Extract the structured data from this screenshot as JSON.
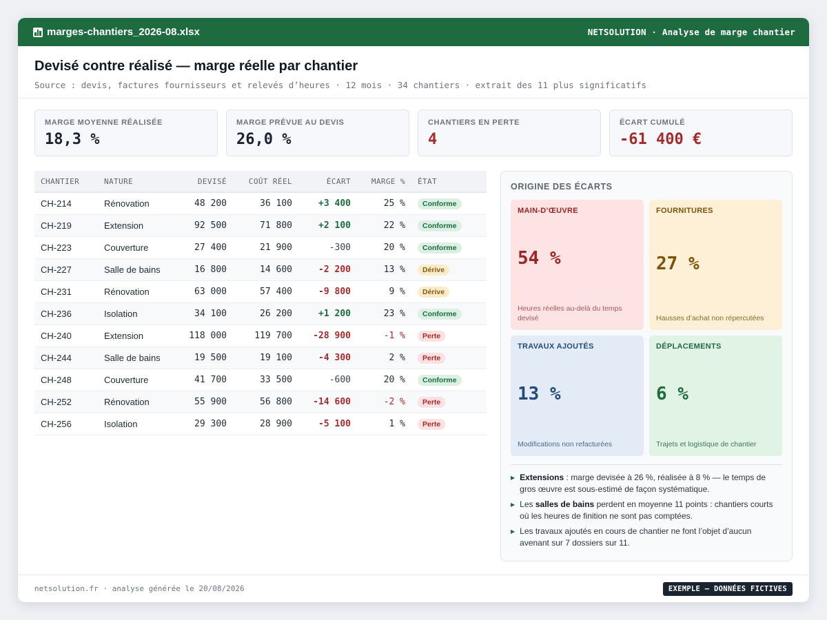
{
  "titlebar": {
    "filename": "marges-chantiers_2026-08.xlsx",
    "brand": "NETSOLUTION · Analyse de marge chantier"
  },
  "header": {
    "title": "Devisé contre réalisé — marge réelle par chantier",
    "subtitle": "Source : devis, factures fournisseurs et relevés d’heures · 12 mois · 34 chantiers · extrait des 11 plus significatifs"
  },
  "kpis": [
    {
      "label": "MARGE MOYENNE RÉALISÉE",
      "value": "18,3 %"
    },
    {
      "label": "MARGE PRÉVUE AU DEVIS",
      "value": "26,0 %"
    },
    {
      "label": "CHANTIERS EN PERTE",
      "value": "4"
    },
    {
      "label": "ÉCART CUMULÉ",
      "value": "-61 400 €"
    }
  ],
  "table": {
    "headers": [
      "CHANTIER",
      "NATURE",
      "DEVISÉ",
      "COÛT RÉEL",
      "ÉCART",
      "MARGE %",
      "ÉTAT"
    ],
    "rows": [
      [
        "CH-214",
        "Rénovation",
        "48 200",
        "36 100",
        "+3 400",
        "25 %",
        "Conforme"
      ],
      [
        "CH-219",
        "Extension",
        "92 500",
        "71 800",
        "+2 100",
        "22 %",
        "Conforme"
      ],
      [
        "CH-223",
        "Couverture",
        "27 400",
        "21 900",
        "-300",
        "20 %",
        "Conforme"
      ],
      [
        "CH-227",
        "Salle de bains",
        "16 800",
        "14 600",
        "-2 200",
        "13 %",
        "Dérive"
      ],
      [
        "CH-231",
        "Rénovation",
        "63 000",
        "57 400",
        "-9 800",
        "9 %",
        "Dérive"
      ],
      [
        "CH-236",
        "Isolation",
        "34 100",
        "26 200",
        "+1 200",
        "23 %",
        "Conforme"
      ],
      [
        "CH-240",
        "Extension",
        "118 000",
        "119 700",
        "-28 900",
        "-1 %",
        "Perte"
      ],
      [
        "CH-244",
        "Salle de bains",
        "19 500",
        "19 100",
        "-4 300",
        "2 %",
        "Perte"
      ],
      [
        "CH-248",
        "Couverture",
        "41 700",
        "33 500",
        "-600",
        "20 %",
        "Conforme"
      ],
      [
        "CH-252",
        "Rénovation",
        "55 900",
        "56 800",
        "-14 600",
        "-2 %",
        "Perte"
      ],
      [
        "CH-256",
        "Isolation",
        "29 300",
        "28 900",
        "-5 100",
        "1 %",
        "Perte"
      ]
    ]
  },
  "panel": {
    "title": "ORIGINE DES ÉCARTS",
    "tiles": [
      {
        "label": "MAIN-D’ŒUVRE",
        "value": "54 %",
        "note": "Heures réelles au-delà du temps devisé"
      },
      {
        "label": "FOURNITURES",
        "value": "27 %",
        "note": "Hausses d’achat non répercutées"
      },
      {
        "label": "TRAVAUX AJOUTÉS",
        "value": "13 %",
        "note": "Modifications non refacturées"
      },
      {
        "label": "DÉPLACEMENTS",
        "value": "6 %",
        "note": "Trajets et logistique de chantier"
      }
    ],
    "notes": [
      {
        "bold": "Extensions",
        "pre": "",
        "post": " : marge devisée à 26 %, réalisée à 8 % — le temps de gros œuvre est sous-estimé de façon systématique."
      },
      {
        "bold": "salles de bains",
        "pre": "Les ",
        "post": " perdent en moyenne 11 points : chantiers courts où les heures de finition ne sont pas comptées."
      },
      {
        "bold": "",
        "pre": "Les travaux ajoutés en cours de chantier ne font l’objet d’aucun avenant sur 7 dossiers sur 11.",
        "post": ""
      }
    ]
  },
  "footer": {
    "text": "netsolution.fr · analyse générée le 20/08/2026",
    "badge": "EXEMPLE — DONNÉES FICTIVES"
  }
}
